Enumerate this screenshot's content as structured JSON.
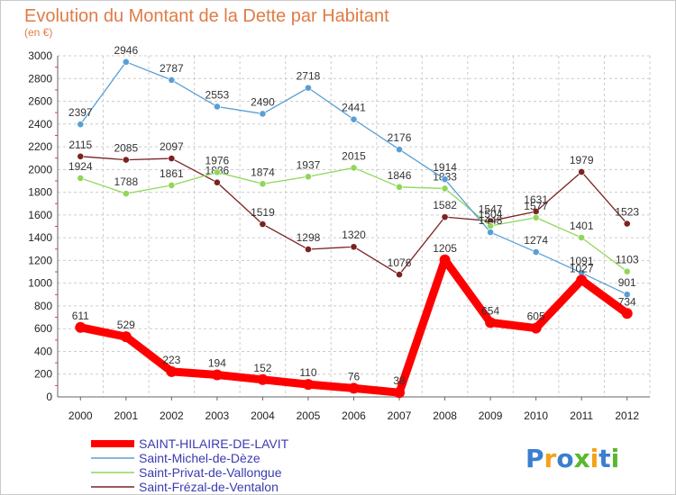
{
  "chart_data": {
    "type": "line",
    "title": "Evolution du Montant de la Dette par Habitant",
    "subtitle": "(en €)",
    "x": [
      "2000",
      "2001",
      "2002",
      "2003",
      "2004",
      "2005",
      "2006",
      "2007",
      "2008",
      "2009",
      "2010",
      "2011",
      "2012"
    ],
    "ylim": [
      0,
      3000
    ],
    "yticks": [
      0,
      200,
      400,
      600,
      800,
      1000,
      1200,
      1400,
      1600,
      1800,
      2000,
      2200,
      2400,
      2600,
      2800,
      3000
    ],
    "grid": true,
    "legend_position": "bottom-left",
    "series": [
      {
        "name": "SAINT-HILAIRE-DE-LAVIT",
        "color": "#ff0000",
        "values": [
          611,
          529,
          223,
          194,
          152,
          110,
          76,
          38,
          1205,
          654,
          605,
          1027,
          734
        ]
      },
      {
        "name": "Saint-Michel-de-Dèze",
        "color": "#5a9fd4",
        "values": [
          2397,
          2946,
          2787,
          2553,
          2490,
          2718,
          2441,
          2176,
          1914,
          1448,
          1274,
          1091,
          901
        ]
      },
      {
        "name": "Saint-Privat-de-Vallongue",
        "color": "#8fd65a",
        "values": [
          1924,
          1788,
          1861,
          1976,
          1874,
          1937,
          2015,
          1846,
          1833,
          1504,
          1577,
          1401,
          1103
        ]
      },
      {
        "name": "Saint-Frézal-de-Ventalon",
        "color": "#7b2222",
        "values": [
          2115,
          2085,
          2097,
          1886,
          1519,
          1298,
          1320,
          1076,
          1582,
          1547,
          1631,
          1979,
          1523
        ]
      }
    ]
  },
  "logo": {
    "text": "Proxiti",
    "colors": [
      "#3a7fd0",
      "#f2a31c",
      "#3a7fd0",
      "#59b82e",
      "#f2a31c",
      "#3a7fd0",
      "#59b82e"
    ]
  }
}
